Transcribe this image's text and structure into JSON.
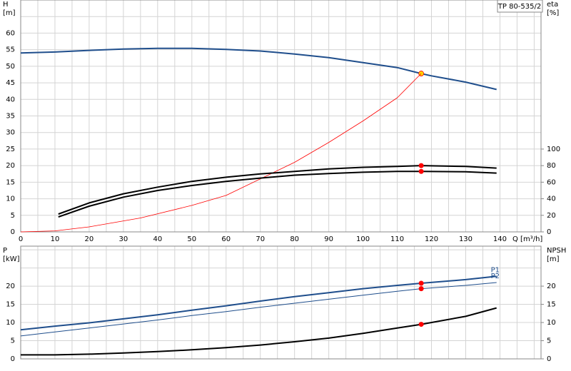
{
  "chart_data": [
    {
      "type": "line",
      "title": "TP 80-535/2",
      "ylabel": [
        "H",
        "[m]"
      ],
      "y2label": [
        "eta",
        "[%]"
      ],
      "xlabel": "Q [m³/h]",
      "xlim": [
        0,
        152
      ],
      "xticks": [
        0,
        10,
        20,
        30,
        40,
        50,
        60,
        70,
        80,
        90,
        100,
        110,
        120,
        130,
        140
      ],
      "ylim": [
        0,
        70
      ],
      "yticks": [
        0,
        5,
        10,
        15,
        20,
        25,
        30,
        35,
        40,
        45,
        50,
        55,
        60
      ],
      "y2lim": [
        0,
        280
      ],
      "y2ticks": [
        0,
        20,
        40,
        60,
        80,
        100
      ],
      "grid": true,
      "series": [
        {
          "color": "#1f4e8c",
          "width": 2,
          "axis": "y",
          "x": [
            0,
            10,
            20,
            30,
            40,
            50,
            60,
            70,
            80,
            90,
            100,
            110,
            117,
            120,
            130,
            139
          ],
          "values": [
            54,
            54.3,
            54.8,
            55.2,
            55.4,
            55.4,
            55.1,
            54.6,
            53.7,
            52.6,
            51.1,
            49.6,
            47.8,
            47.1,
            45.2,
            43
          ],
          "duty_point": {
            "x": 117,
            "y": 47.8
          },
          "point_color": "#ffd700"
        },
        {
          "color": "#ff0000",
          "width": 0.8,
          "axis": "y",
          "x": [
            0,
            10,
            20,
            35,
            50,
            60,
            72,
            80,
            90,
            100,
            110,
            117
          ],
          "values": [
            0,
            0.3,
            1.5,
            4.2,
            8,
            11,
            17,
            21,
            27,
            33.5,
            40.5,
            47.8
          ]
        },
        {
          "color": "#000000",
          "width": 2,
          "axis": "y2",
          "x": [
            11,
            20,
            30,
            40,
            50,
            60,
            70,
            80,
            90,
            100,
            110,
            117,
            130,
            139
          ],
          "values": [
            21.5,
            35,
            46,
            54,
            61,
            66,
            70,
            73,
            76,
            78,
            79,
            80,
            79,
            77
          ],
          "duty_point": {
            "x": 117,
            "y": 80
          },
          "point_color": "#ff0000"
        },
        {
          "color": "#000000",
          "width": 2,
          "axis": "y2",
          "x": [
            11,
            20,
            30,
            40,
            50,
            60,
            70,
            80,
            90,
            100,
            110,
            117,
            130,
            139
          ],
          "values": [
            18,
            31,
            42,
            50,
            56,
            61,
            65,
            68.5,
            70.5,
            72,
            73,
            73,
            72.5,
            71
          ],
          "duty_point": {
            "x": 117,
            "y": 73
          },
          "point_color": "#ff0000"
        }
      ]
    },
    {
      "type": "line",
      "ylabel": [
        "P",
        "[kW]"
      ],
      "y2label": [
        "NPSH",
        "[m]"
      ],
      "ylim": [
        0,
        31
      ],
      "yticks": [
        0,
        5,
        10,
        15,
        20
      ],
      "y2lim": [
        0,
        31
      ],
      "y2ticks": [
        0,
        5,
        10,
        15,
        20
      ],
      "grid": true,
      "series": [
        {
          "name": "P1",
          "color": "#1f4e8c",
          "width": 2,
          "axis": "y",
          "x": [
            0,
            10,
            20,
            30,
            40,
            50,
            60,
            70,
            80,
            90,
            100,
            110,
            117,
            130,
            139
          ],
          "values": [
            8,
            9,
            9.9,
            11,
            12.1,
            13.4,
            14.6,
            15.9,
            17.1,
            18.2,
            19.3,
            20.2,
            20.8,
            21.8,
            22.7
          ],
          "duty_point": {
            "x": 117,
            "y": 20.8
          },
          "point_color": "#ff0000"
        },
        {
          "name": "P2",
          "color": "#1f4e8c",
          "width": 1,
          "axis": "y",
          "x": [
            0,
            10,
            20,
            30,
            40,
            50,
            60,
            70,
            80,
            90,
            100,
            110,
            117,
            130,
            139
          ],
          "values": [
            6.3,
            7.4,
            8.5,
            9.6,
            10.7,
            11.9,
            13,
            14.2,
            15.3,
            16.4,
            17.5,
            18.6,
            19.3,
            20.2,
            21
          ],
          "duty_point": {
            "x": 117,
            "y": 19.3
          },
          "point_color": "#ff0000"
        },
        {
          "color": "#000000",
          "width": 2,
          "axis": "y2",
          "x": [
            0,
            10,
            20,
            30,
            40,
            50,
            60,
            70,
            80,
            90,
            100,
            110,
            117,
            130,
            139
          ],
          "values": [
            1.1,
            1.1,
            1.3,
            1.6,
            2,
            2.5,
            3.1,
            3.8,
            4.7,
            5.7,
            7,
            8.5,
            9.5,
            11.7,
            14
          ],
          "duty_point": {
            "x": 117,
            "y": 9.5
          },
          "point_color": "#ff0000"
        }
      ]
    }
  ]
}
